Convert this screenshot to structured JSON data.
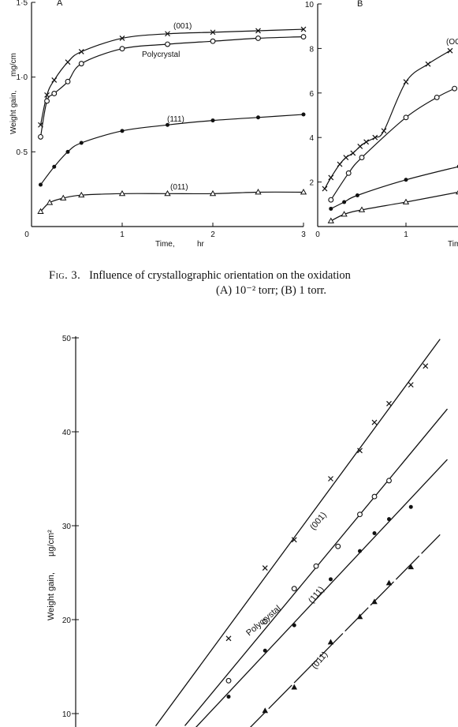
{
  "caption": {
    "fig_label": "Fig. 3.",
    "line1": "Influence of crystallographic orientation on the oxidation",
    "line2": "(A) 10⁻² torr; (B) 1 torr."
  },
  "chart_data": [
    {
      "type": "line",
      "panel_label": "A",
      "xlabel": "Time,",
      "xunit": "hr",
      "ylabel": "Weight gain,",
      "yunit": "mg/cm",
      "xlim": [
        0,
        3
      ],
      "ylim": [
        0,
        1.5
      ],
      "xticks": [
        0,
        1,
        2,
        3
      ],
      "xtick_labels": [
        "0",
        "1",
        "2",
        "3"
      ],
      "yticks": [
        0,
        0.5,
        1.0,
        1.5
      ],
      "ytick_labels": [
        "",
        "0·5",
        "1·0",
        "1·5"
      ],
      "series": [
        {
          "name": "(001)",
          "marker": "x",
          "x": [
            0.1,
            0.17,
            0.25,
            0.4,
            0.55,
            1.0,
            1.5,
            2.0,
            2.5,
            3.0
          ],
          "y": [
            0.68,
            0.88,
            0.98,
            1.1,
            1.17,
            1.26,
            1.29,
            1.3,
            1.31,
            1.32
          ]
        },
        {
          "name": "Polycrystal",
          "marker": "circle-open",
          "x": [
            0.1,
            0.17,
            0.25,
            0.4,
            0.55,
            1.0,
            1.5,
            2.0,
            2.5,
            3.0
          ],
          "y": [
            0.6,
            0.84,
            0.89,
            0.97,
            1.09,
            1.19,
            1.22,
            1.24,
            1.26,
            1.27
          ]
        },
        {
          "name": "(111)",
          "marker": "circle-filled",
          "x": [
            0.1,
            0.25,
            0.4,
            0.55,
            1.0,
            1.5,
            2.0,
            2.5,
            3.0
          ],
          "y": [
            0.28,
            0.4,
            0.5,
            0.56,
            0.64,
            0.68,
            0.71,
            0.73,
            0.75
          ]
        },
        {
          "name": "(011)",
          "marker": "triangle-open",
          "x": [
            0.1,
            0.2,
            0.35,
            0.55,
            1.0,
            1.5,
            2.0,
            2.5,
            3.0
          ],
          "y": [
            0.1,
            0.16,
            0.19,
            0.21,
            0.22,
            0.22,
            0.22,
            0.23,
            0.23
          ]
        }
      ]
    },
    {
      "type": "line",
      "panel_label": "B",
      "xlim": [
        0,
        1.6
      ],
      "ylim": [
        0,
        10
      ],
      "xticks": [
        0,
        1
      ],
      "xtick_labels": [
        "0",
        "1"
      ],
      "yticks": [
        2,
        4,
        6,
        8,
        10
      ],
      "ytick_labels": [
        "2",
        "4",
        "6",
        "8",
        "10"
      ],
      "series": [
        {
          "name": "(OO",
          "marker": "x",
          "x": [
            0.08,
            0.15,
            0.25,
            0.32,
            0.4,
            0.48,
            0.55,
            0.65,
            0.75,
            1.0,
            1.25,
            1.5
          ],
          "y": [
            1.7,
            2.2,
            2.8,
            3.1,
            3.3,
            3.6,
            3.8,
            4.0,
            4.3,
            6.5,
            7.3,
            7.9
          ]
        },
        {
          "name": "",
          "marker": "circle-open",
          "x": [
            0.15,
            0.35,
            0.5,
            1.0,
            1.35,
            1.55
          ],
          "y": [
            1.2,
            2.4,
            3.1,
            4.9,
            5.8,
            6.2
          ]
        },
        {
          "name": "",
          "marker": "circle-filled",
          "x": [
            0.15,
            0.3,
            0.45,
            1.0,
            1.6
          ],
          "y": [
            0.8,
            1.1,
            1.4,
            2.1,
            2.7
          ]
        },
        {
          "name": "",
          "marker": "triangle-open",
          "x": [
            0.15,
            0.3,
            0.5,
            1.0,
            1.6
          ],
          "y": [
            0.25,
            0.55,
            0.75,
            1.1,
            1.55
          ]
        }
      ]
    },
    {
      "type": "line",
      "ylabel": "Weight gain,",
      "yunit": "µg/cm²",
      "ylim": [
        10,
        50
      ],
      "yticks": [
        10,
        20,
        30,
        40,
        50
      ],
      "ytick_labels": [
        "10",
        "20",
        "30",
        "40",
        "50"
      ],
      "series": [
        {
          "name": "(001)",
          "marker": "x",
          "x": [
            1.1,
            1.35,
            1.55,
            1.8,
            2.0,
            2.1,
            2.2,
            2.35,
            2.45
          ],
          "y": [
            18,
            25.5,
            28.5,
            35,
            38,
            41,
            43,
            45,
            47
          ]
        },
        {
          "name": "Polycrystal",
          "marker": "circle-open",
          "x": [
            1.1,
            1.35,
            1.55,
            1.7,
            1.85,
            2.0,
            2.1,
            2.2
          ],
          "y": [
            13.5,
            19.8,
            23.3,
            25.7,
            27.8,
            31.2,
            33.1,
            34.8
          ]
        },
        {
          "name": "(111)",
          "marker": "circle-filled",
          "x": [
            1.1,
            1.35,
            1.55,
            1.8,
            2.0,
            2.1,
            2.2,
            2.35
          ],
          "y": [
            11.8,
            16.7,
            19.4,
            24.3,
            27.3,
            29.2,
            30.7,
            32.0
          ]
        },
        {
          "name": "(011)",
          "marker": "triangle-filled",
          "x": [
            1.35,
            1.55,
            1.8,
            2.0,
            2.1,
            2.2,
            2.35
          ],
          "y": [
            10.3,
            12.8,
            17.6,
            20.3,
            21.9,
            23.9,
            25.6
          ]
        }
      ]
    }
  ]
}
